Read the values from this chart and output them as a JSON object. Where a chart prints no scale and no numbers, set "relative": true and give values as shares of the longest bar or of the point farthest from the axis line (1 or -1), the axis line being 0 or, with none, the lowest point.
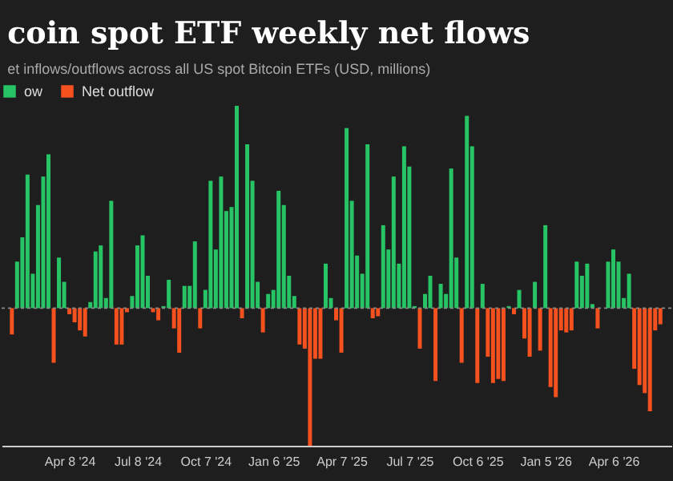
{
  "chart_data": {
    "type": "bar",
    "title": "coin spot ETF weekly net flows",
    "subtitle": "et inflows/outflows across all US spot Bitcoin ETFs (USD, millions)",
    "relative": true,
    "grid": false,
    "ref_lines": [
      {
        "axis": "y",
        "value": 0,
        "color": "#888888",
        "line_style": "dotted"
      }
    ],
    "legend": "top left",
    "xlim": [
      "2024-01-19",
      "2026-06-12"
    ],
    "xticks": [
      {
        "value": "2024-04-08",
        "label": "Apr 8 '24"
      },
      {
        "value": "2024-07-08",
        "label": "Jul 8 '24"
      },
      {
        "value": "2024-10-07",
        "label": "Oct 7 '24"
      },
      {
        "value": "2025-01-06",
        "label": "Jan 6 '25"
      },
      {
        "value": "2025-04-07",
        "label": "Apr 7 '25"
      },
      {
        "value": "2025-07-07",
        "label": "Jul 7 '25"
      },
      {
        "value": "2025-10-06",
        "label": "Oct 6 '25"
      },
      {
        "value": "2026-01-05",
        "label": "Jan 5 '26"
      },
      {
        "value": "2026-04-06",
        "label": "Apr 6 '26"
      }
    ],
    "x": [
      "2024-01-22",
      "2024-01-29",
      "2024-02-05",
      "2024-02-12",
      "2024-02-19",
      "2024-02-26",
      "2024-03-04",
      "2024-03-11",
      "2024-03-18",
      "2024-03-25",
      "2024-04-01",
      "2024-04-08",
      "2024-04-15",
      "2024-04-22",
      "2024-04-29",
      "2024-05-06",
      "2024-05-13",
      "2024-05-20",
      "2024-05-27",
      "2024-06-03",
      "2024-06-10",
      "2024-06-17",
      "2024-06-24",
      "2024-07-01",
      "2024-07-08",
      "2024-07-15",
      "2024-07-22",
      "2024-07-29",
      "2024-08-05",
      "2024-08-12",
      "2024-08-19",
      "2024-08-26",
      "2024-09-02",
      "2024-09-09",
      "2024-09-16",
      "2024-09-23",
      "2024-09-30",
      "2024-10-07",
      "2024-10-14",
      "2024-10-21",
      "2024-10-28",
      "2024-11-04",
      "2024-11-11",
      "2024-11-18",
      "2024-11-25",
      "2024-12-02",
      "2024-12-09",
      "2024-12-16",
      "2024-12-23",
      "2024-12-30",
      "2025-01-06",
      "2025-01-13",
      "2025-01-20",
      "2025-01-27",
      "2025-02-03",
      "2025-02-10",
      "2025-02-17",
      "2025-02-24",
      "2025-03-03",
      "2025-03-10",
      "2025-03-17",
      "2025-03-24",
      "2025-03-31",
      "2025-04-07",
      "2025-04-14",
      "2025-04-21",
      "2025-04-28",
      "2025-05-05",
      "2025-05-12",
      "2025-05-19",
      "2025-05-26",
      "2025-06-02",
      "2025-06-09",
      "2025-06-16",
      "2025-06-23",
      "2025-06-30",
      "2025-07-07",
      "2025-07-14",
      "2025-07-21",
      "2025-07-28",
      "2025-08-04",
      "2025-08-11",
      "2025-08-18",
      "2025-08-25",
      "2025-09-01",
      "2025-09-08",
      "2025-09-15",
      "2025-09-22",
      "2025-09-29",
      "2025-10-06",
      "2025-10-13",
      "2025-10-20",
      "2025-10-27",
      "2025-11-03",
      "2025-11-10",
      "2025-11-17",
      "2025-11-24",
      "2025-12-01",
      "2025-12-08",
      "2025-12-15",
      "2025-12-22",
      "2025-12-29",
      "2026-01-05",
      "2026-01-12",
      "2026-01-19",
      "2026-01-26",
      "2026-02-02",
      "2026-02-09",
      "2026-02-16",
      "2026-02-23",
      "2026-03-02",
      "2026-03-09",
      "2026-03-16",
      "2026-03-23",
      "2026-03-30",
      "2026-04-06",
      "2026-04-13",
      "2026-04-20",
      "2026-04-27",
      "2026-05-04",
      "2026-05-11",
      "2026-05-18",
      "2026-05-25",
      "2026-06-01",
      "2026-06-08"
    ],
    "series": [
      {
        "name": "ow",
        "color": "#27c465",
        "values": [
          null,
          0.23,
          0.35,
          0.66,
          0.17,
          0.51,
          0.65,
          0.76,
          null,
          0.25,
          0.13,
          null,
          null,
          null,
          null,
          0.03,
          0.28,
          0.31,
          0.05,
          0.53,
          null,
          null,
          null,
          0.06,
          0.31,
          0.36,
          0.16,
          null,
          null,
          0.01,
          0.14,
          null,
          null,
          0.11,
          0.11,
          0.33,
          null,
          0.09,
          0.63,
          0.29,
          0.65,
          0.48,
          0.5,
          1,
          null,
          0.81,
          0.63,
          0.13,
          null,
          0.07,
          0.09,
          0.58,
          0.51,
          0.16,
          0.06,
          null,
          null,
          null,
          null,
          null,
          0.22,
          0.05,
          null,
          null,
          0.89,
          0.53,
          0.26,
          0.17,
          0.81,
          null,
          null,
          0.41,
          0.29,
          0.65,
          0.22,
          0.8,
          0.7,
          0.01,
          null,
          0.07,
          0.16,
          null,
          0.12,
          0.07,
          0.69,
          0.25,
          null,
          0.95,
          0.8,
          null,
          0.12,
          null,
          null,
          null,
          null,
          0.01,
          null,
          0.09,
          null,
          null,
          0.13,
          null,
          0.41,
          null,
          null,
          null,
          null,
          null,
          0.23,
          0.16,
          0.22,
          0.02,
          null,
          null,
          0.23,
          0.29,
          0.23,
          0.05,
          0.17,
          null,
          null,
          null,
          null,
          null,
          null
        ]
      },
      {
        "name": "Net outflow",
        "color": "#f4511e",
        "values": [
          -0.13,
          null,
          null,
          null,
          null,
          null,
          null,
          null,
          -0.27,
          null,
          null,
          -0.03,
          -0.07,
          -0.11,
          -0.14,
          null,
          null,
          null,
          null,
          null,
          -0.18,
          -0.18,
          -0.02,
          null,
          null,
          null,
          null,
          -0.02,
          -0.06,
          null,
          null,
          -0.1,
          -0.22,
          null,
          null,
          null,
          -0.1,
          null,
          null,
          null,
          null,
          null,
          null,
          null,
          -0.05,
          null,
          null,
          null,
          -0.12,
          null,
          null,
          null,
          null,
          null,
          null,
          -0.18,
          -0.2,
          -0.68,
          -0.25,
          -0.25,
          null,
          null,
          -0.06,
          -0.22,
          null,
          null,
          null,
          null,
          null,
          -0.05,
          -0.04,
          null,
          null,
          null,
          null,
          null,
          null,
          null,
          -0.2,
          null,
          null,
          -0.36,
          null,
          null,
          null,
          null,
          -0.27,
          null,
          null,
          -0.37,
          null,
          -0.24,
          -0.37,
          -0.35,
          -0.36,
          null,
          -0.03,
          null,
          -0.15,
          -0.24,
          null,
          -0.21,
          null,
          -0.39,
          -0.44,
          -0.11,
          -0.12,
          -0.11,
          null,
          null,
          null,
          null,
          -0.1,
          null,
          null,
          null,
          null,
          null,
          null,
          -0.3,
          -0.38,
          -0.42,
          -0.51,
          -0.11,
          -0.08
        ]
      }
    ]
  }
}
